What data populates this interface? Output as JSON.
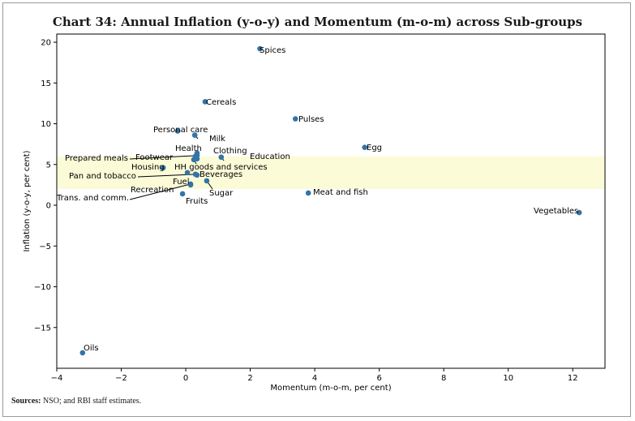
{
  "chart_data": {
    "type": "scatter",
    "title": "Chart 34: Annual Inflation (y-o-y) and Momentum (m-o-m) across Sub-groups",
    "xlabel": "Momentum (m-o-m, per cent)",
    "ylabel": "Inflation (y-o-y, per cent)",
    "xlim": [
      -4,
      13
    ],
    "ylim": [
      -20,
      21
    ],
    "xticks": [
      -4,
      -2,
      0,
      2,
      4,
      6,
      8,
      10,
      12
    ],
    "yticks": [
      -15,
      -10,
      -5,
      0,
      5,
      10,
      15,
      20
    ],
    "band": {
      "y_from": 2,
      "y_to": 6,
      "color": "#fbfbd8"
    },
    "marker_color": "#3274a8",
    "points": [
      {
        "name": "Spices",
        "x": 2.3,
        "y": 19.2
      },
      {
        "name": "Cereals",
        "x": 0.6,
        "y": 12.7
      },
      {
        "name": "Pulses",
        "x": 3.4,
        "y": 10.6
      },
      {
        "name": "Personal care",
        "x": -0.25,
        "y": 9.1
      },
      {
        "name": "Milk",
        "x": 0.28,
        "y": 8.6
      },
      {
        "name": "Egg",
        "x": 5.55,
        "y": 7.1
      },
      {
        "name": "Health",
        "x": 0.35,
        "y": 6.4
      },
      {
        "name": "Clothing",
        "x": 0.3,
        "y": 6.0
      },
      {
        "name": "Education",
        "x": 1.1,
        "y": 5.9
      },
      {
        "name": "Prepared meals",
        "x": 0.35,
        "y": 6.1
      },
      {
        "name": "Footwear",
        "x": 0.35,
        "y": 5.7
      },
      {
        "name": "Housing",
        "x": -0.7,
        "y": 4.6
      },
      {
        "name": "HH goods and services",
        "x": 0.25,
        "y": 5.6
      },
      {
        "name": "Pan and tobacco",
        "x": 0.3,
        "y": 3.8
      },
      {
        "name": "Fuel",
        "x": 0.05,
        "y": 4.0
      },
      {
        "name": "Beverages",
        "x": 0.35,
        "y": 3.7
      },
      {
        "name": "Recreation",
        "x": 0.15,
        "y": 2.5
      },
      {
        "name": "Sugar",
        "x": 0.65,
        "y": 3.0
      },
      {
        "name": "Trans. and comm.",
        "x": 0.15,
        "y": 2.6
      },
      {
        "name": "Fruits",
        "x": -0.1,
        "y": 1.4
      },
      {
        "name": "Meat and fish",
        "x": 3.8,
        "y": 1.5
      },
      {
        "name": "Vegetables",
        "x": 12.2,
        "y": -0.9
      },
      {
        "name": "Oils",
        "x": -3.2,
        "y": -18.1
      }
    ]
  },
  "source_label": "Sources:",
  "source_text": "NSO; and RBI staff estimates."
}
